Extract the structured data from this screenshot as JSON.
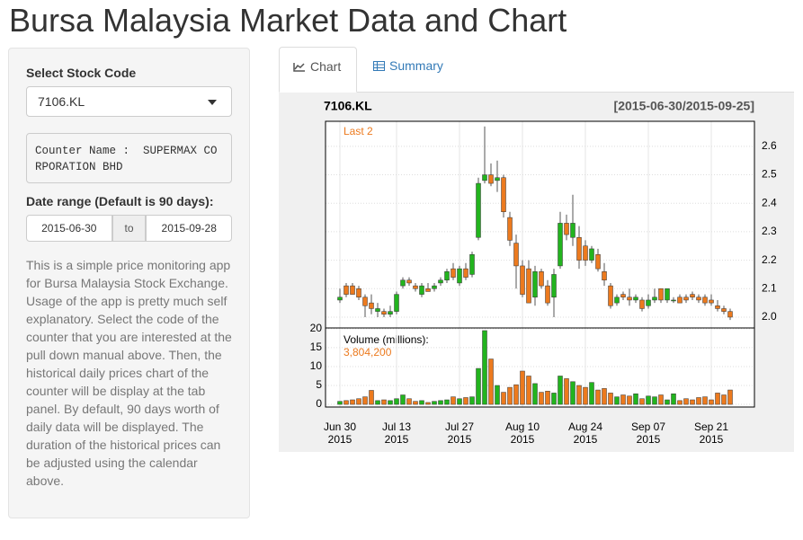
{
  "title": "Bursa Malaysia Market Data and Chart",
  "sidebar": {
    "stock_label": "Select Stock Code",
    "stock_value": "7106.KL",
    "counter_text": "Counter Name :  SUPERMAX CORPORATION BHD",
    "date_label": "Date range (Default is 90 days):",
    "date_start": "2015-06-30",
    "date_sep": "to",
    "date_end": "2015-09-28",
    "help": "This is a simple price monitoring app for Bursa Malaysia Stock Exchange. Usage of the app is pretty much self explanatory. Select the code of the counter that you are interested at the pull down manual above. Then, the historical daily prices chart of the counter will be display at the tab panel. By default, 90 days worth of daily data will be displayed. The duration of the historical prices can be adjusted using the calendar above."
  },
  "tabs": [
    "Chart",
    "Summary"
  ],
  "chart": {
    "type": "candlestick",
    "title": "7106.KL",
    "range_label": "[2015-06-30/2015-09-25]",
    "last_label": "Last 2",
    "volume_title": "Volume (millions):",
    "last_volume_label": "3,804,200",
    "up_color": "#22b41e",
    "down_color": "#ec7a1e",
    "categories": [
      {
        "label": "Jun 30",
        "year": "2015"
      },
      null,
      null,
      null,
      null,
      null,
      null,
      null,
      null,
      {
        "label": "Jul 13",
        "year": "2015"
      },
      null,
      null,
      null,
      null,
      null,
      null,
      null,
      null,
      null,
      {
        "label": "Jul 27",
        "year": "2015"
      },
      null,
      null,
      null,
      null,
      null,
      null,
      null,
      null,
      null,
      {
        "label": "Aug 10",
        "year": "2015"
      },
      null,
      null,
      null,
      null,
      null,
      null,
      null,
      null,
      null,
      {
        "label": "Aug 24",
        "year": "2015"
      },
      null,
      null,
      null,
      null,
      null,
      null,
      null,
      null,
      null,
      {
        "label": "Sep 07",
        "year": "2015"
      },
      null,
      null,
      null,
      null,
      null,
      null,
      null,
      null,
      null,
      {
        "label": "Sep 21",
        "year": "2015"
      },
      null,
      null,
      null
    ],
    "open": [
      2.06,
      2.11,
      2.11,
      2.1,
      2.07,
      2.05,
      2.02,
      2.02,
      2.01,
      2.02,
      2.11,
      2.13,
      2.11,
      2.08,
      2.1,
      2.1,
      2.12,
      2.13,
      2.17,
      2.12,
      2.17,
      2.15,
      2.28,
      2.48,
      2.5,
      2.48,
      2.49,
      2.35,
      2.26,
      2.18,
      2.17,
      2.07,
      2.16,
      2.11,
      2.07,
      2.18,
      2.33,
      2.28,
      2.28,
      2.25,
      2.2,
      2.22,
      2.16,
      2.11,
      2.05,
      2.08,
      2.07,
      2.06,
      2.06,
      2.04,
      2.06,
      2.1,
      2.06,
      2.06,
      2.07,
      2.07,
      2.08,
      2.07,
      2.07,
      2.06,
      2.04,
      2.03,
      2.02
    ],
    "high": [
      2.1,
      2.12,
      2.12,
      2.11,
      2.08,
      2.08,
      2.05,
      2.03,
      2.04,
      2.09,
      2.14,
      2.14,
      2.12,
      2.12,
      2.12,
      2.12,
      2.14,
      2.17,
      2.19,
      2.18,
      2.19,
      2.23,
      2.49,
      2.67,
      2.54,
      2.55,
      2.5,
      2.37,
      2.29,
      2.2,
      2.2,
      2.18,
      2.17,
      2.13,
      2.17,
      2.37,
      2.36,
      2.43,
      2.32,
      2.27,
      2.25,
      2.24,
      2.19,
      2.12,
      2.08,
      2.09,
      2.1,
      2.08,
      2.07,
      2.08,
      2.1,
      2.1,
      2.1,
      2.07,
      2.08,
      2.08,
      2.09,
      2.08,
      2.08,
      2.08,
      2.06,
      2.04,
      2.03
    ],
    "low": [
      2.05,
      2.07,
      2.08,
      2.06,
      2.0,
      2.01,
      2.0,
      2.0,
      2.0,
      2.01,
      2.1,
      2.11,
      2.09,
      2.07,
      2.09,
      2.09,
      2.11,
      2.12,
      2.13,
      2.11,
      2.13,
      2.14,
      2.27,
      2.47,
      2.46,
      2.44,
      2.35,
      2.25,
      2.1,
      2.07,
      2.05,
      2.04,
      2.1,
      2.04,
      2.0,
      2.17,
      2.27,
      2.25,
      2.17,
      2.18,
      2.19,
      2.16,
      2.11,
      2.03,
      2.04,
      2.06,
      2.04,
      2.05,
      2.02,
      2.03,
      2.05,
      2.05,
      2.05,
      2.05,
      2.05,
      2.05,
      2.06,
      2.05,
      2.04,
      2.04,
      2.02,
      2.01,
      1.99
    ],
    "close": [
      2.07,
      2.08,
      2.08,
      2.07,
      2.04,
      2.03,
      2.03,
      2.01,
      2.02,
      2.08,
      2.13,
      2.12,
      2.1,
      2.11,
      2.09,
      2.11,
      2.13,
      2.16,
      2.14,
      2.17,
      2.14,
      2.22,
      2.47,
      2.5,
      2.47,
      2.49,
      2.37,
      2.27,
      2.18,
      2.08,
      2.05,
      2.16,
      2.11,
      2.05,
      2.15,
      2.33,
      2.29,
      2.33,
      2.2,
      2.2,
      2.24,
      2.17,
      2.13,
      2.04,
      2.07,
      2.07,
      2.06,
      2.07,
      2.03,
      2.06,
      2.07,
      2.06,
      2.1,
      2.06,
      2.05,
      2.06,
      2.07,
      2.06,
      2.05,
      2.05,
      2.03,
      2.02,
      2.0
    ],
    "volume": [
      0.8,
      1.0,
      1.2,
      1.5,
      2.0,
      3.7,
      1.0,
      1.2,
      1.0,
      1.5,
      2.5,
      1.5,
      0.8,
      1.0,
      0.5,
      0.8,
      1.0,
      1.2,
      2.0,
      1.5,
      1.8,
      2.0,
      9.5,
      19.5,
      12.0,
      5.0,
      3.2,
      4.5,
      5.2,
      8.8,
      7.5,
      5.5,
      3.2,
      3.5,
      3.0,
      7.5,
      6.8,
      6.0,
      5.0,
      4.5,
      5.8,
      3.8,
      4.2,
      3.0,
      2.0,
      2.5,
      2.2,
      2.8,
      1.5,
      2.2,
      2.0,
      2.5,
      1.2,
      2.8,
      1.0,
      1.5,
      1.2,
      1.8,
      2.0,
      1.2,
      3.0,
      2.5,
      3.8042
    ],
    "ylim": [
      1.962,
      2.688
    ],
    "yticks": [
      {
        "value": 2,
        "label": "2.0"
      },
      2.1,
      2.2,
      2.3,
      2.4,
      2.5,
      2.6
    ],
    "volume_ylim": [
      -0.7,
      20.2
    ],
    "volume_yticks": [
      0,
      5,
      10,
      15,
      20
    ],
    "grid": true
  }
}
